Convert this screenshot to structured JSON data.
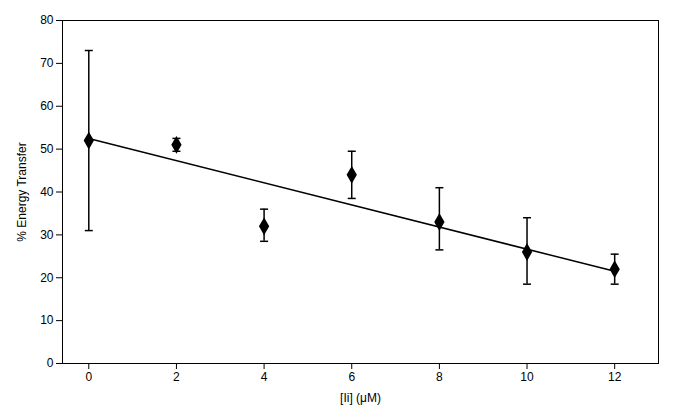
{
  "chart_data": {
    "type": "scatter",
    "xlabel": "[Ii] (μM)",
    "ylabel": "% Energy Transfer",
    "xlim": [
      -0.6,
      13.0
    ],
    "ylim": [
      0,
      80
    ],
    "xticks": [
      0,
      2,
      4,
      6,
      8,
      10,
      12
    ],
    "yticks": [
      0,
      10,
      20,
      30,
      40,
      50,
      60,
      70,
      80
    ],
    "series": [
      {
        "type": "line",
        "x": [
          0,
          12
        ],
        "values": [
          52.5,
          21.5
        ],
        "color": "#000000",
        "line_style": "solid"
      },
      {
        "type": "scatter",
        "x": [
          0,
          2,
          4,
          6,
          8,
          10,
          12
        ],
        "values": [
          52.0,
          51.0,
          32.0,
          44.0,
          33.0,
          26.0,
          22.0
        ],
        "yerr_low": [
          21.0,
          1.5,
          3.5,
          5.5,
          6.5,
          7.5,
          3.5
        ],
        "yerr_high": [
          21.0,
          1.5,
          4.0,
          5.5,
          8.0,
          8.0,
          3.5
        ],
        "color": "#000000",
        "marker": "diamond"
      }
    ]
  }
}
